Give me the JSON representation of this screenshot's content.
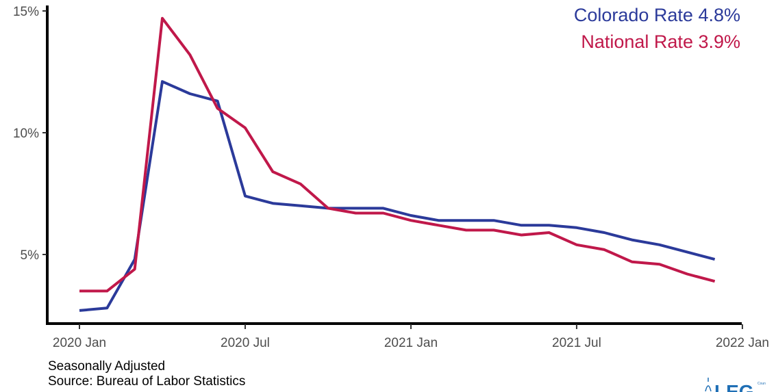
{
  "chart_data": {
    "type": "line",
    "title": "",
    "xlabel": "",
    "ylabel": "",
    "ylim": [
      2.5,
      15
    ],
    "y_ticks": [
      {
        "value": 5,
        "label": "5%"
      },
      {
        "value": 10,
        "label": "10%"
      },
      {
        "value": 15,
        "label": "15%"
      }
    ],
    "x_ticks": [
      {
        "index": 0,
        "label": "2020 Jan"
      },
      {
        "index": 6,
        "label": "2020 Jul"
      },
      {
        "index": 12,
        "label": "2021 Jan"
      },
      {
        "index": 18,
        "label": "2021 Jul"
      },
      {
        "index": 24,
        "label": "2022 Jan"
      }
    ],
    "x_months": [
      "2020-01",
      "2020-02",
      "2020-03",
      "2020-04",
      "2020-05",
      "2020-06",
      "2020-07",
      "2020-08",
      "2020-09",
      "2020-10",
      "2020-11",
      "2020-12",
      "2021-01",
      "2021-02",
      "2021-03",
      "2021-04",
      "2021-05",
      "2021-06",
      "2021-07",
      "2021-08",
      "2021-09",
      "2021-10",
      "2021-11",
      "2021-12"
    ],
    "grid": false,
    "legend_position": "top-right",
    "series": [
      {
        "name": "Colorado",
        "label": "Colorado Rate 4.8%",
        "color": "#2b3a9a",
        "values": [
          2.7,
          2.8,
          4.8,
          12.1,
          11.6,
          11.3,
          7.4,
          7.1,
          7.0,
          6.9,
          6.9,
          6.9,
          6.6,
          6.4,
          6.4,
          6.4,
          6.2,
          6.2,
          6.1,
          5.9,
          5.6,
          5.4,
          5.1,
          4.8
        ]
      },
      {
        "name": "National",
        "label": "National Rate 3.9%",
        "color": "#c0184a",
        "values": [
          3.5,
          3.5,
          4.4,
          14.7,
          13.2,
          11.0,
          10.2,
          8.4,
          7.9,
          6.9,
          6.7,
          6.7,
          6.4,
          6.2,
          6.0,
          6.0,
          5.8,
          5.9,
          5.4,
          5.2,
          4.7,
          4.6,
          4.2,
          3.9
        ]
      }
    ]
  },
  "notes": {
    "line1": "Seasonally Adjusted",
    "line2": "Source: Bureau of Labor Statistics"
  },
  "logo": {
    "text": "LEG",
    "small_text": "Coun"
  }
}
